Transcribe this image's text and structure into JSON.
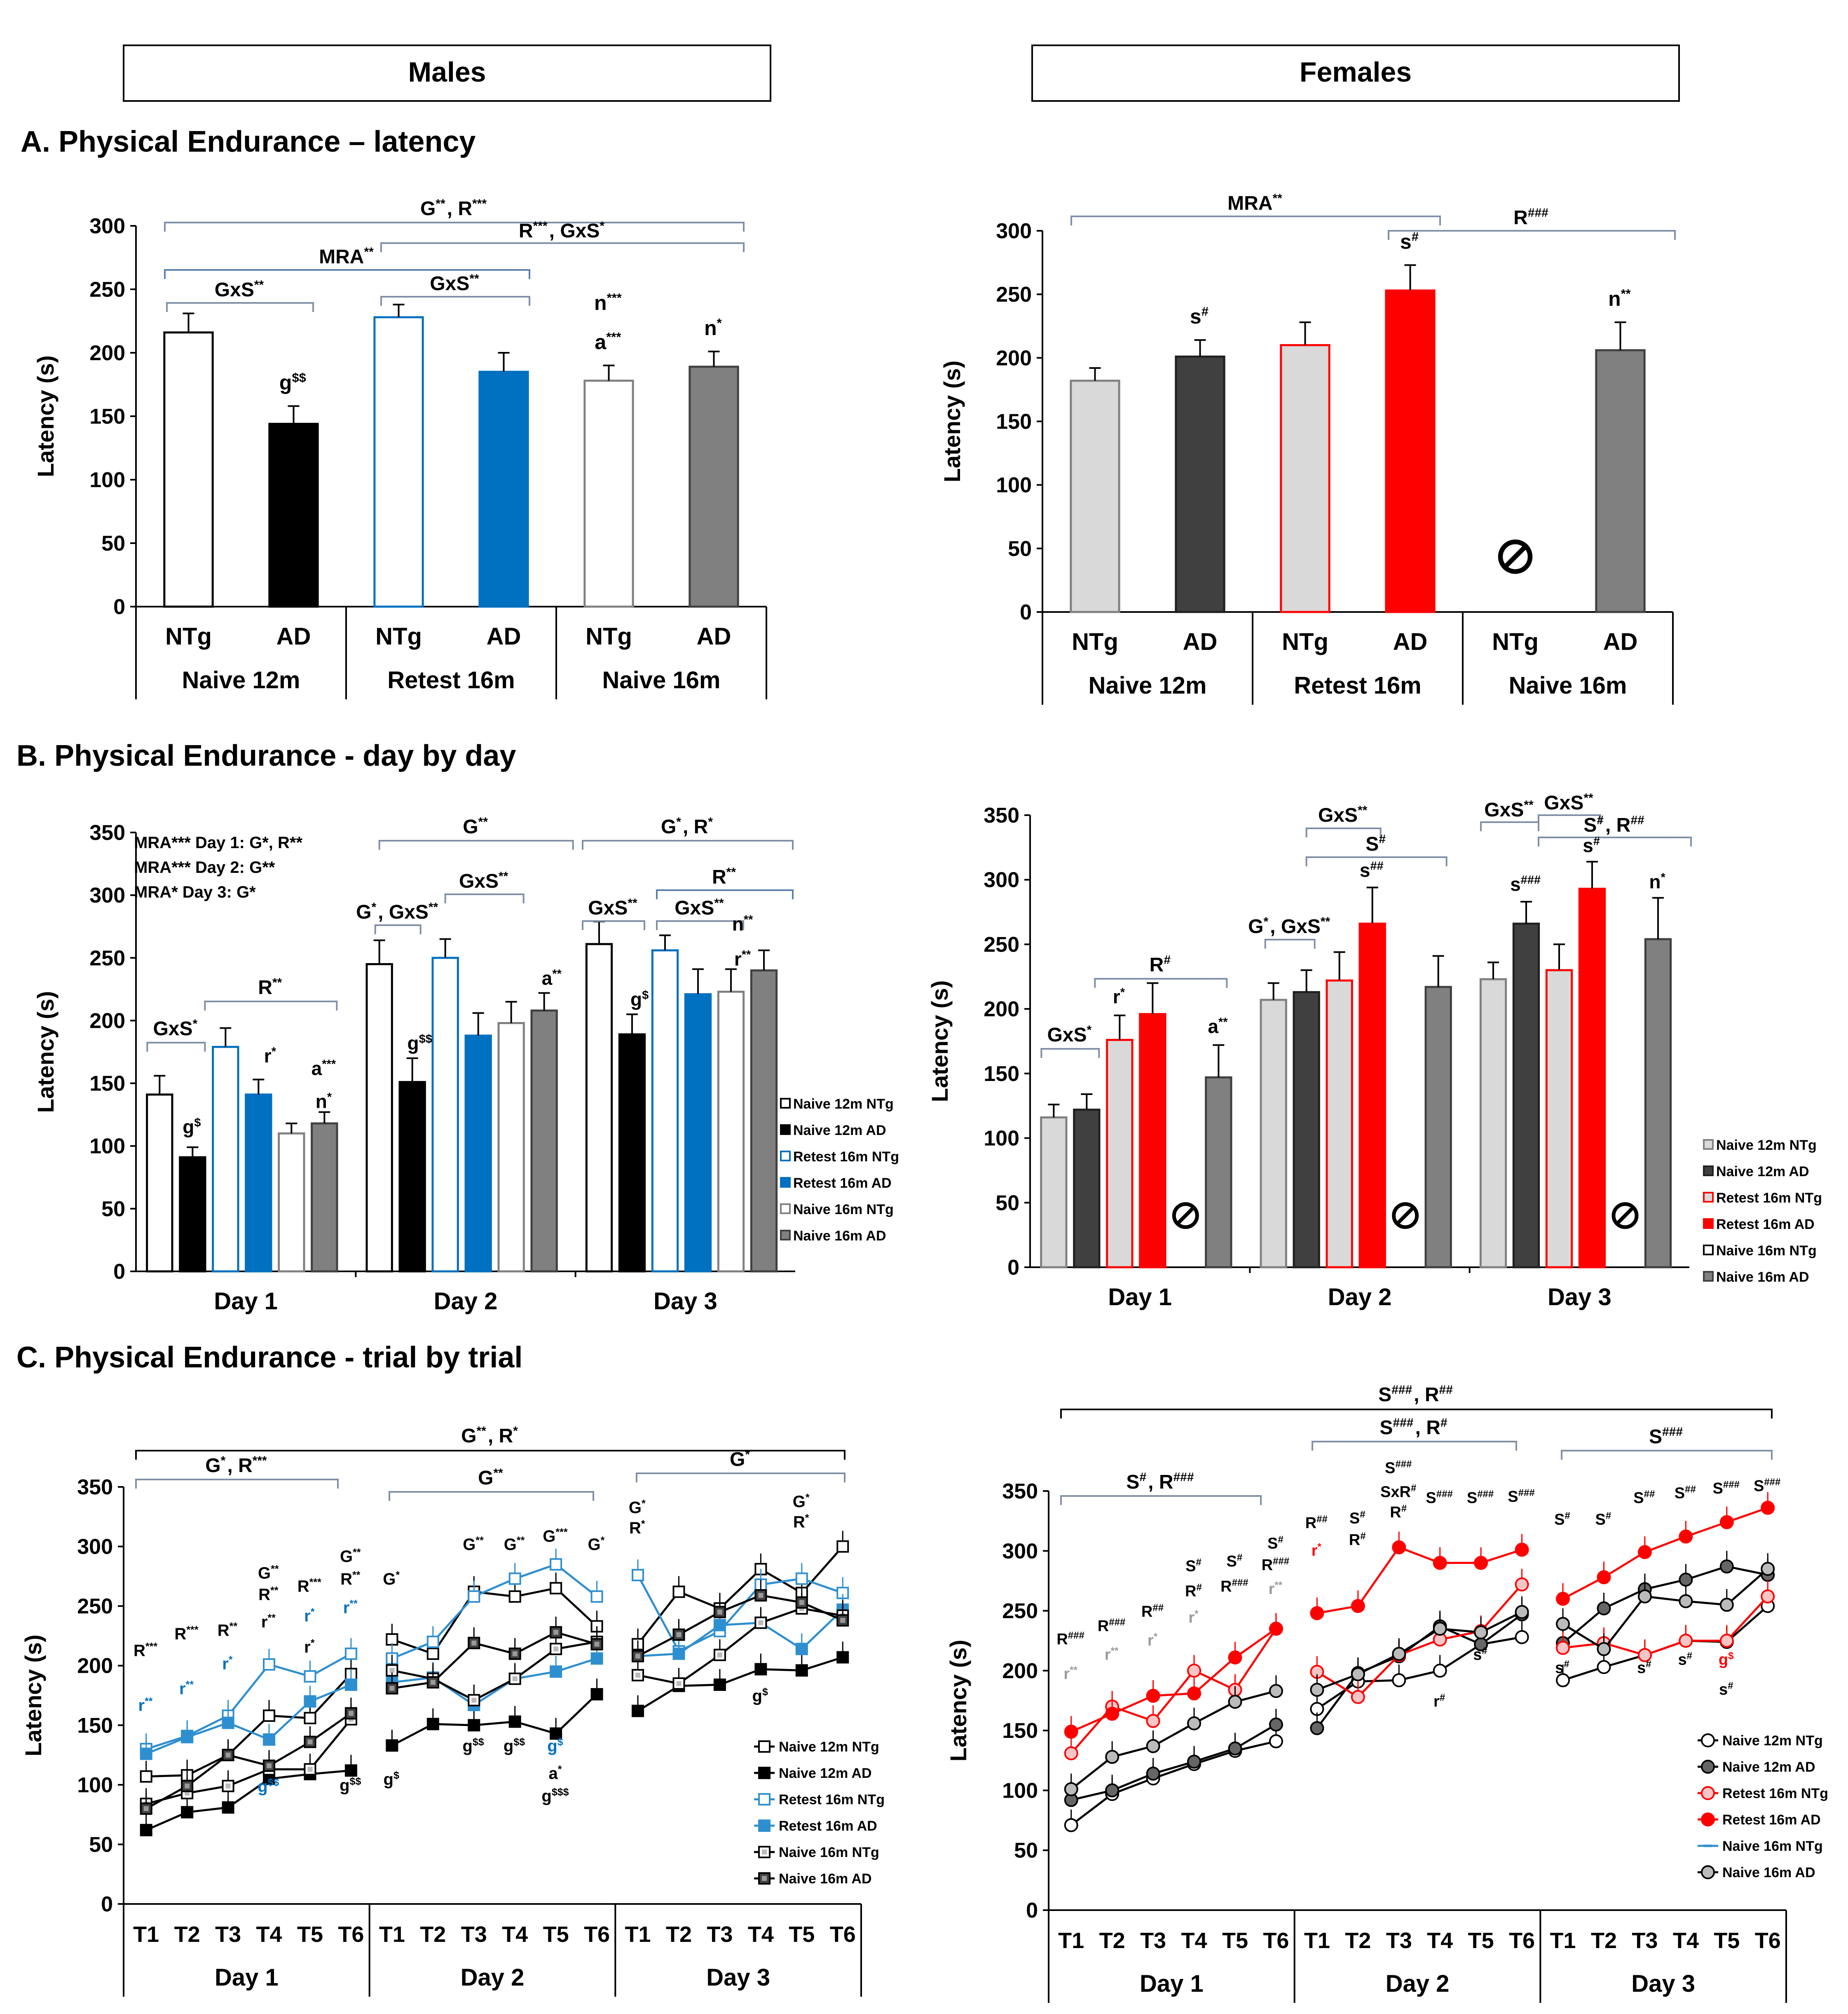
{
  "headers": {
    "males": "Males",
    "females": "Females"
  },
  "sections": {
    "A": "A. Physical Endurance – latency",
    "B": "B. Physical Endurance - day by day",
    "C": "C. Physical Endurance - trial by trial"
  },
  "common": {
    "ylabel": "Latency (s)",
    "group_ntg": "NTg",
    "group_ad": "AD",
    "cohorts": [
      "Naive 12m",
      "Retest 16m",
      "Naive 16m"
    ],
    "days": [
      "Day 1",
      "Day 2",
      "Day 3"
    ],
    "trials": [
      "T1",
      "T2",
      "T3",
      "T4",
      "T5",
      "T6"
    ],
    "na_icon": "prohibited-icon"
  },
  "colors": {
    "black": "#000000",
    "blue": "#0070C0",
    "lightblue": "#2E8FD0",
    "gray": "#808080",
    "lightgray": "#D9D9D9",
    "darkgray": "#404040",
    "red": "#FF0000",
    "pink": "#F08080",
    "bracket": "#7F8FA6"
  },
  "chart_data": [
    {
      "id": "A_males",
      "type": "bar",
      "title": "A. Physical Endurance – latency",
      "subset": "Males",
      "ylabel": "Latency (s)",
      "ylim": [
        0,
        300
      ],
      "yticks": [
        0,
        50,
        100,
        150,
        200,
        250,
        300
      ],
      "bars": [
        {
          "label": "NTg",
          "cohort": "Naive 12m",
          "value": 216,
          "err": 15,
          "annot": []
        },
        {
          "label": "AD",
          "cohort": "Naive 12m",
          "value": 144,
          "err": 14,
          "annot": [
            "g$$"
          ]
        },
        {
          "label": "NTg",
          "cohort": "Retest 16m",
          "value": 228,
          "err": 10,
          "annot": []
        },
        {
          "label": "AD",
          "cohort": "Retest 16m",
          "value": 185,
          "err": 15,
          "annot": []
        },
        {
          "label": "NTg",
          "cohort": "Naive 16m",
          "value": 178,
          "err": 12,
          "annot": [
            "n***",
            "a***"
          ]
        },
        {
          "label": "AD",
          "cohort": "Naive 16m",
          "value": 189,
          "err": 12,
          "annot": [
            "n*"
          ]
        }
      ],
      "brackets": [
        "G**, R***",
        "R***, GxS*",
        "MRA**",
        "GxS**",
        "GxS**"
      ]
    },
    {
      "id": "A_females",
      "type": "bar",
      "subset": "Females",
      "ylabel": "Latency (s)",
      "ylim": [
        0,
        300
      ],
      "yticks": [
        0,
        50,
        100,
        150,
        200,
        250,
        300
      ],
      "bars": [
        {
          "label": "NTg",
          "cohort": "Naive 12m",
          "value": 182,
          "err": 10,
          "annot": []
        },
        {
          "label": "AD",
          "cohort": "Naive 12m",
          "value": 201,
          "err": 13,
          "annot": [
            "s#"
          ]
        },
        {
          "label": "NTg",
          "cohort": "Retest 16m",
          "value": 210,
          "err": 18,
          "annot": []
        },
        {
          "label": "AD",
          "cohort": "Retest 16m",
          "value": 253,
          "err": 20,
          "annot": [
            "s#"
          ]
        },
        {
          "label": "NTg",
          "cohort": "Naive 16m",
          "value": null,
          "err": null,
          "annot": []
        },
        {
          "label": "AD",
          "cohort": "Naive 16m",
          "value": 206,
          "err": 22,
          "annot": [
            "n**"
          ]
        }
      ],
      "brackets": [
        "MRA**",
        "R###"
      ]
    },
    {
      "id": "B_males",
      "type": "bar",
      "title": "B. Physical Endurance - day by day",
      "subset": "Males",
      "ylabel": "Latency (s)",
      "ylim": [
        0,
        350
      ],
      "yticks": [
        0,
        50,
        100,
        150,
        200,
        250,
        300,
        350
      ],
      "categories": [
        "Day 1",
        "Day 2",
        "Day 3"
      ],
      "series": [
        {
          "name": "Naive 12m NTg",
          "values": [
            141,
            245,
            261
          ],
          "err": [
            15,
            19,
            18
          ]
        },
        {
          "name": "Naive 12m AD",
          "values": [
            91,
            151,
            189
          ],
          "err": [
            8,
            19,
            16
          ]
        },
        {
          "name": "Retest 16m NTg",
          "values": [
            179,
            250,
            256
          ],
          "err": [
            15,
            15,
            12
          ]
        },
        {
          "name": "Retest 16m AD",
          "values": [
            141,
            188,
            221
          ],
          "err": [
            12,
            18,
            20
          ]
        },
        {
          "name": "Naive 16m NTg",
          "values": [
            110,
            198,
            223
          ],
          "err": [
            8,
            17,
            18
          ]
        },
        {
          "name": "Naive 16m AD",
          "values": [
            118,
            208,
            240
          ],
          "err": [
            9,
            14,
            16
          ]
        }
      ],
      "annotations": [
        "MRA*** Day 1: G*, R**",
        "MRA*** Day 2: G**",
        "MRA*   Day 3: G*",
        "GxS*",
        "R**",
        "g$",
        "r*",
        "a***",
        "n*",
        "G**",
        "G*, GxS**",
        "GxS**",
        "g$$",
        "a**",
        "G*, R*",
        "R**",
        "GxS**",
        "GxS**",
        "g$",
        "n**",
        "r**"
      ]
    },
    {
      "id": "B_females",
      "type": "bar",
      "subset": "Females",
      "ylabel": "Latency (s)",
      "ylim": [
        0,
        350
      ],
      "yticks": [
        0,
        50,
        100,
        150,
        200,
        250,
        300,
        350
      ],
      "categories": [
        "Day 1",
        "Day 2",
        "Day 3"
      ],
      "series": [
        {
          "name": "Naive 12m NTg",
          "values": [
            116,
            207,
            223
          ],
          "err": [
            10,
            13,
            13
          ]
        },
        {
          "name": "Naive 12m AD",
          "values": [
            122,
            213,
            266
          ],
          "err": [
            12,
            17,
            17
          ]
        },
        {
          "name": "Retest 16m NTg",
          "values": [
            176,
            222,
            230
          ],
          "err": [
            19,
            22,
            20
          ]
        },
        {
          "name": "Retest 16m AD",
          "values": [
            196,
            266,
            293
          ],
          "err": [
            24,
            28,
            21
          ]
        },
        {
          "name": "Naive 16m NTg",
          "values": [
            null,
            null,
            null
          ],
          "err": [
            null,
            null,
            null
          ]
        },
        {
          "name": "Naive 16m AD",
          "values": [
            147,
            217,
            254
          ],
          "err": [
            25,
            24,
            32
          ]
        }
      ],
      "annotations": [
        "GxS*",
        "R#",
        "r*",
        "a**",
        "G*, GxS**",
        "GxS**",
        "S#",
        "s##",
        "GxS**",
        "GxS**",
        "S#, R##",
        "s###",
        "s#",
        "n*"
      ]
    },
    {
      "id": "C_males",
      "type": "line",
      "title": "C. Physical Endurance - trial by trial",
      "subset": "Males",
      "ylabel": "Latency (s)",
      "ylim": [
        0,
        350
      ],
      "yticks": [
        0,
        50,
        100,
        150,
        200,
        250,
        300,
        350
      ],
      "x": [
        "T1",
        "T2",
        "T3",
        "T4",
        "T5",
        "T6",
        "T1",
        "T2",
        "T3",
        "T4",
        "T5",
        "T6",
        "T1",
        "T2",
        "T3",
        "T4",
        "T5",
        "T6"
      ],
      "series": [
        {
          "name": "Naive 12m NTg",
          "values": [
            107,
            108,
            125,
            158,
            156,
            193,
            222,
            210,
            262,
            258,
            265,
            233,
            218,
            262,
            248,
            281,
            261,
            300
          ]
        },
        {
          "name": "Naive 12m AD",
          "values": [
            62,
            77,
            81,
            105,
            109,
            112,
            133,
            151,
            150,
            153,
            143,
            176,
            162,
            183,
            184,
            197,
            196,
            207
          ]
        },
        {
          "name": "Retest 16m NTg",
          "values": [
            130,
            141,
            158,
            201,
            191,
            210,
            206,
            220,
            258,
            273,
            285,
            258,
            276,
            212,
            229,
            268,
            273,
            261
          ]
        },
        {
          "name": "Retest 16m AD",
          "values": [
            126,
            140,
            152,
            138,
            170,
            184,
            186,
            190,
            167,
            189,
            195,
            206,
            208,
            210,
            234,
            236,
            214,
            247
          ]
        },
        {
          "name": "Naive 16m NTg",
          "values": [
            84,
            93,
            99,
            113,
            113,
            155,
            196,
            189,
            171,
            189,
            214,
            220,
            192,
            185,
            209,
            236,
            248,
            242
          ]
        },
        {
          "name": "Naive 16m AD",
          "values": [
            80,
            99,
            125,
            116,
            136,
            160,
            181,
            186,
            219,
            210,
            228,
            218,
            208,
            226,
            245,
            259,
            253,
            238
          ]
        }
      ],
      "annotations": [
        "G**, R*",
        "G*, R***",
        "G**",
        "G*",
        "R***",
        "r**",
        "R***",
        "r**",
        "R**",
        "r*",
        "G**",
        "R**",
        "r**",
        "R***",
        "r*",
        "r*",
        "G**",
        "R**",
        "r**",
        "g$$",
        "g$$",
        "G*",
        "G**",
        "G**",
        "G***",
        "G*",
        "g$",
        "g$$",
        "g$$",
        "g$",
        "a*",
        "g$$$",
        "G*",
        "R*",
        "G*",
        "R*",
        "g$"
      ]
    },
    {
      "id": "C_females",
      "type": "line",
      "subset": "Females",
      "ylabel": "Latency (s)",
      "ylim": [
        0,
        350
      ],
      "yticks": [
        0,
        50,
        100,
        150,
        200,
        250,
        300,
        350
      ],
      "x": [
        "T1",
        "T2",
        "T3",
        "T4",
        "T5",
        "T6",
        "T1",
        "T2",
        "T3",
        "T4",
        "T5",
        "T6",
        "T1",
        "T2",
        "T3",
        "T4",
        "T5",
        "T6"
      ],
      "series": [
        {
          "name": "Naive 12m NTg",
          "values": [
            71,
            97,
            110,
            122,
            133,
            141,
            168,
            191,
            192,
            200,
            222,
            228,
            192,
            203,
            213,
            225,
            224,
            254
          ]
        },
        {
          "name": "Naive 12m AD",
          "values": [
            92,
            100,
            114,
            124,
            135,
            155,
            152,
            198,
            212,
            237,
            222,
            247,
            223,
            252,
            268,
            276,
            287,
            280
          ]
        },
        {
          "name": "Retest 16m NTg",
          "values": [
            131,
            170,
            158,
            200,
            184,
            235,
            199,
            178,
            213,
            226,
            233,
            272,
            219,
            223,
            213,
            225,
            225,
            262
          ]
        },
        {
          "name": "Retest 16m AD",
          "values": [
            149,
            164,
            179,
            181,
            211,
            235,
            248,
            254,
            303,
            290,
            290,
            301,
            260,
            278,
            299,
            312,
            324,
            336
          ]
        },
        {
          "name": "Naive 16m NTg",
          "values": [
            null,
            null,
            null,
            null,
            null,
            null,
            null,
            null,
            null,
            null,
            null,
            null,
            null,
            null,
            null,
            null,
            null,
            null
          ]
        },
        {
          "name": "Naive 16m AD",
          "values": [
            101,
            128,
            137,
            156,
            174,
            183,
            184,
            197,
            214,
            235,
            232,
            249,
            239,
            218,
            262,
            258,
            255,
            285
          ]
        }
      ],
      "annotations": [
        "S###, R##",
        "S#, R###",
        "S###, R#",
        "S###",
        "R###",
        "r**",
        "R###",
        "r**",
        "R##",
        "r*",
        "S#",
        "R#",
        "r*",
        "S#",
        "R###",
        "S#",
        "R###",
        "r**",
        "R##",
        "r*",
        "S#",
        "R#",
        "S###",
        "SxR#",
        "R#",
        "S###",
        "S###",
        "S###",
        "r#",
        "s#",
        "S#",
        "S#",
        "S##",
        "S##",
        "S###",
        "S###",
        "s#",
        "s#",
        "s#",
        "g$",
        "s#"
      ]
    }
  ]
}
